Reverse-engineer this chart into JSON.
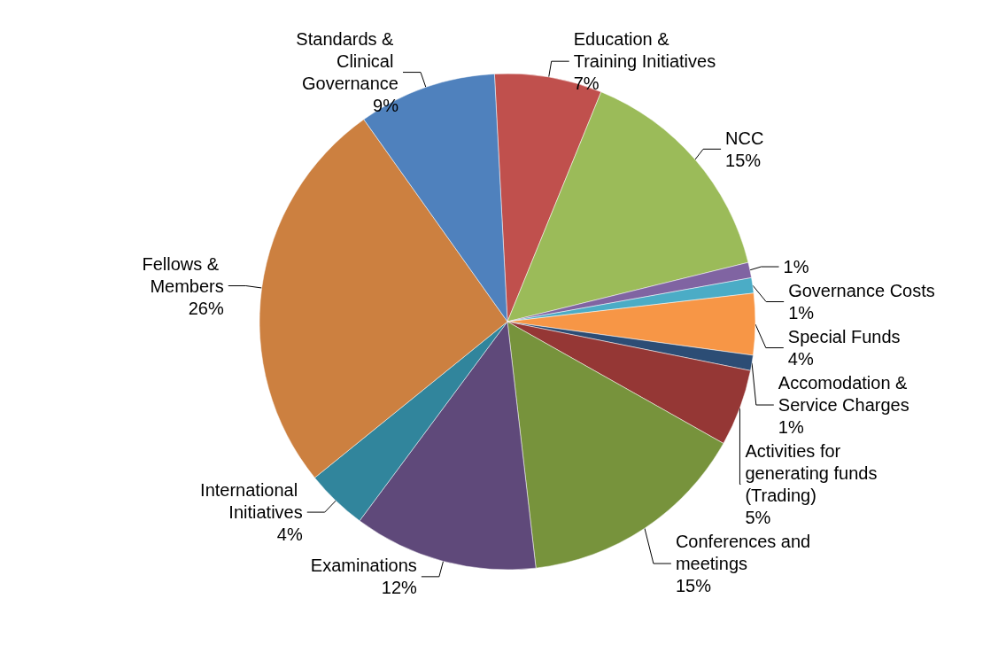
{
  "chart_data": {
    "type": "pie",
    "categories": [
      "Education & Training Initiatives",
      "NCC",
      null,
      "Governance Costs",
      "Special Funds",
      "Accomodation & Service Charges",
      "Activities for generating funds (Trading)",
      "Conferences and meetings",
      "Examinations",
      "International Initiatives",
      "Fellows & Members",
      "Standards & Clinical Governance"
    ],
    "values": [
      7,
      15,
      1,
      1,
      4,
      1,
      5,
      15,
      12,
      4,
      26,
      9
    ],
    "colors": [
      "#c0504d",
      "#9bbb59",
      "#8064a2",
      "#4bacc6",
      "#f79646",
      "#2c4d75",
      "#953735",
      "#77933c",
      "#5f497a",
      "#31859c",
      "#cc8040",
      "#4f81bd"
    ],
    "value_labels": [
      "7%",
      "15%",
      "1%",
      "1%",
      "4%",
      "1%",
      "5%",
      "15%",
      "12%",
      "4%",
      "26%",
      "9%"
    ],
    "legend": false
  }
}
